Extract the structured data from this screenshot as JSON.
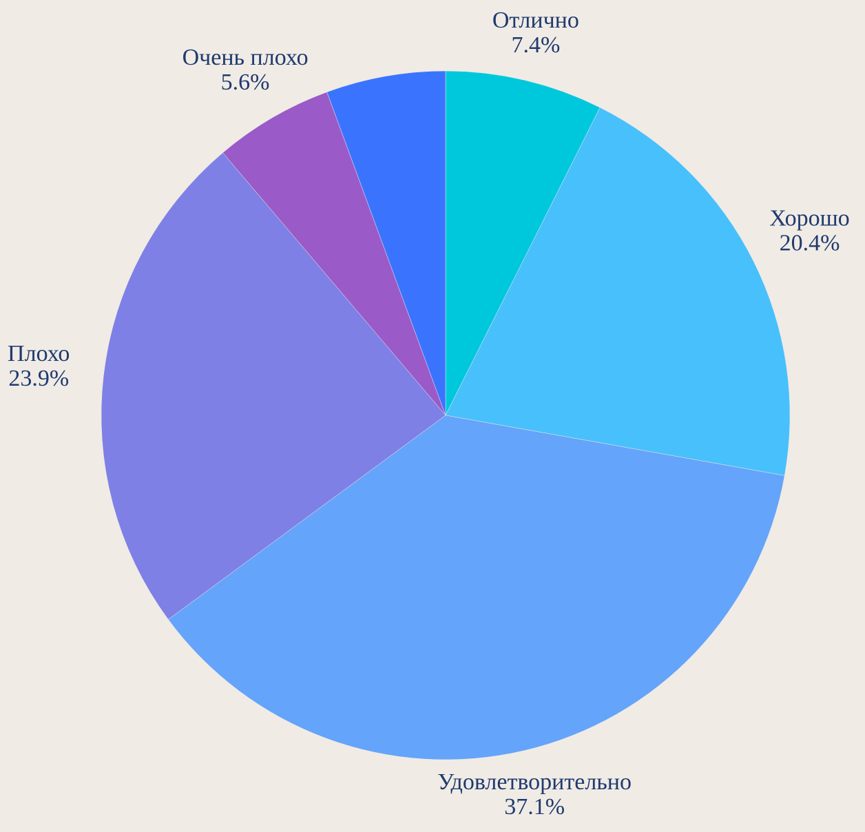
{
  "chart_data": {
    "type": "pie",
    "categories": [
      "Отлично",
      "Хорошо",
      "Удовлетворительно",
      "Плохо",
      "Очень плохо",
      null
    ],
    "values": [
      7.4,
      20.4,
      37.1,
      23.9,
      5.6,
      5.6
    ],
    "value_labels": [
      "7.4%",
      "20.4%",
      "37.1%",
      "23.9%",
      "5.6%",
      null
    ],
    "colors": [
      "#00c8dc",
      "#48c0fc",
      "#64a4fa",
      "#7e80e6",
      "#9a5ac8",
      "#3a74fe"
    ]
  }
}
